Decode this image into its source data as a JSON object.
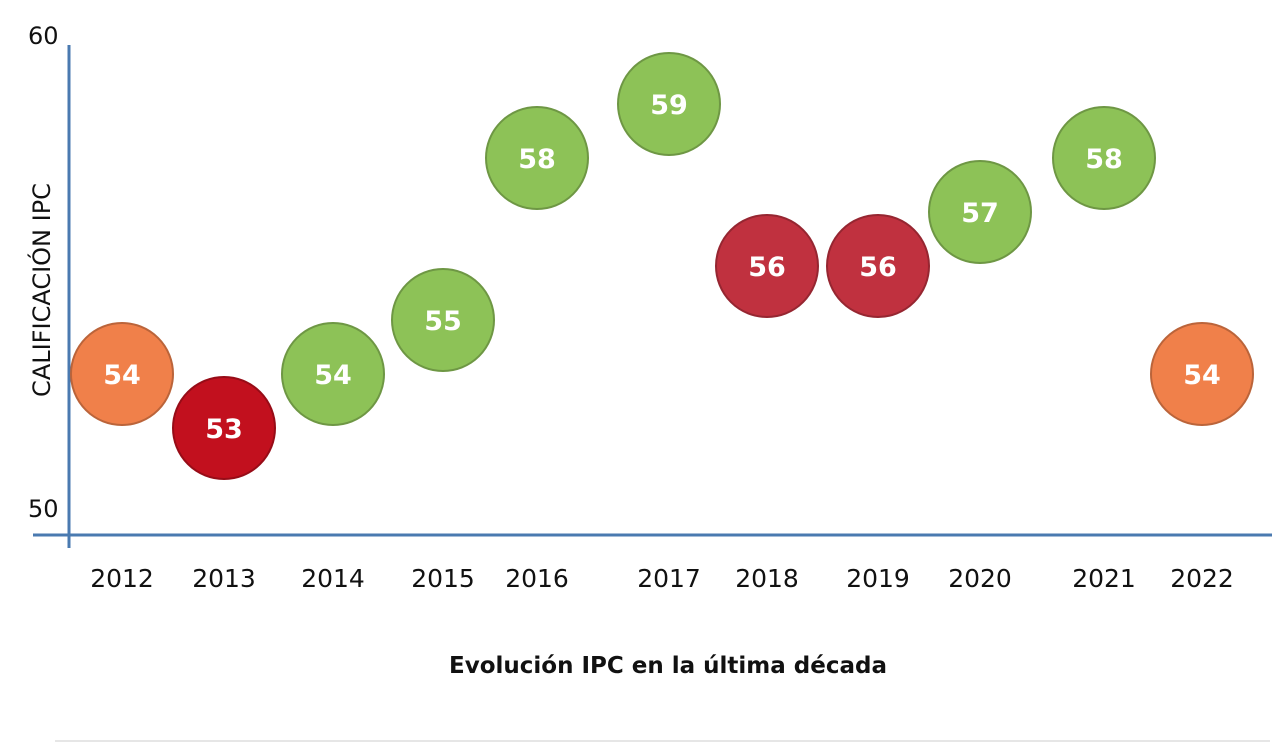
{
  "chart_data": {
    "type": "scatter",
    "title": "Evolución IPC en la última década",
    "xlabel": "Evolución IPC en la última década",
    "ylabel": "CALIFICACIÓN IPC",
    "ylim": [
      50,
      60
    ],
    "yticks": [
      "50",
      "60"
    ],
    "grid": false,
    "categories": [
      "2012",
      "2013",
      "2014",
      "2015",
      "2016",
      "2017",
      "2018",
      "2019",
      "2020",
      "2021",
      "2022"
    ],
    "values": [
      54,
      53,
      54,
      55,
      58,
      59,
      56,
      56,
      57,
      58,
      54
    ],
    "point_colors": [
      "#F0804A",
      "#C2101E",
      "#8DC257",
      "#8DC257",
      "#8DC257",
      "#8DC257",
      "#C0313F",
      "#C0313F",
      "#8DC257",
      "#8DC257",
      "#F0804A"
    ],
    "axis_color": "#4A7AB0"
  }
}
